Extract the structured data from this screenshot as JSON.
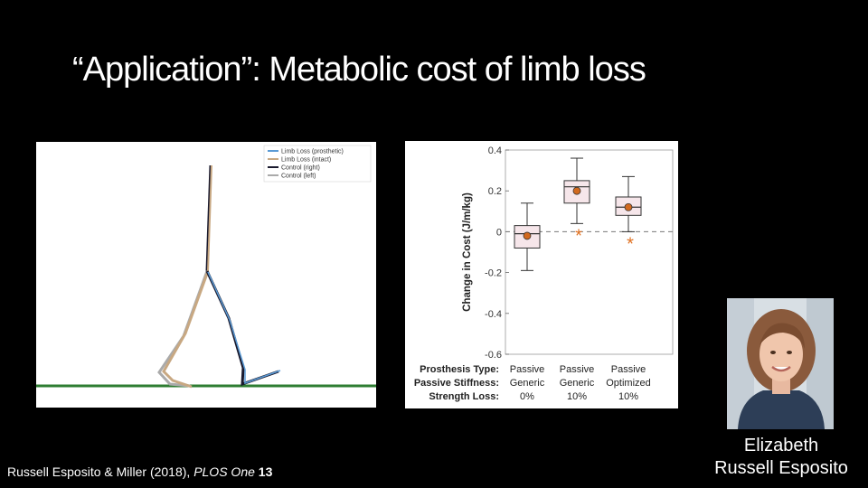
{
  "slide": {
    "title": "“Application”: Metabolic cost of limb loss",
    "citation_authors": "Russell Esposito & Miller (2018), ",
    "citation_journal": "PLOS One",
    "citation_volume": " 13",
    "person_name_line1": "Elizabeth",
    "person_name_line2": "Russell Esposito"
  },
  "figure_left": {
    "legend": [
      "Limb Loss (prosthetic)",
      "Limb Loss (intact)",
      "Control (right)",
      "Control (left)"
    ],
    "colors": {
      "prosthetic": "#5b9bd5",
      "intact": "#c8a882",
      "control_right": "#1a1a2e",
      "control_left": "#aaaaaa",
      "ground": "#2e7d32"
    }
  },
  "chart_data": {
    "type": "box",
    "ylabel": "Change in Cost (J/m/kg)",
    "ylim": [
      -0.6,
      0.4
    ],
    "yticks": [
      -0.6,
      -0.4,
      -0.2,
      0,
      0.2,
      0.4
    ],
    "ytick_labels": [
      "-0.6",
      "-0.4",
      "-0.2",
      "0",
      "0.2",
      "0.4"
    ],
    "row_labels": [
      "Prosthesis Type:",
      "Passive Stiffness:",
      "Strength Loss:"
    ],
    "groups": [
      {
        "col": [
          "Passive",
          "Generic",
          "0%"
        ],
        "whisker_low": -0.19,
        "q1": -0.08,
        "median": -0.01,
        "q3": 0.03,
        "whisker_high": 0.14,
        "mean": -0.02,
        "significant": false
      },
      {
        "col": [
          "Passive",
          "Generic",
          "10%"
        ],
        "whisker_low": 0.04,
        "q1": 0.14,
        "median": 0.22,
        "q3": 0.25,
        "whisker_high": 0.36,
        "mean": 0.2,
        "significant": true
      },
      {
        "col": [
          "Passive",
          "Optimized",
          "10%"
        ],
        "whisker_low": 0.0,
        "q1": 0.08,
        "median": 0.12,
        "q3": 0.17,
        "whisker_high": 0.27,
        "mean": 0.12,
        "significant": true
      }
    ],
    "significance_marker": "*",
    "colors": {
      "box_fill": "#f6e6ea",
      "mean": "#d2691e",
      "star": "#e07020"
    }
  }
}
